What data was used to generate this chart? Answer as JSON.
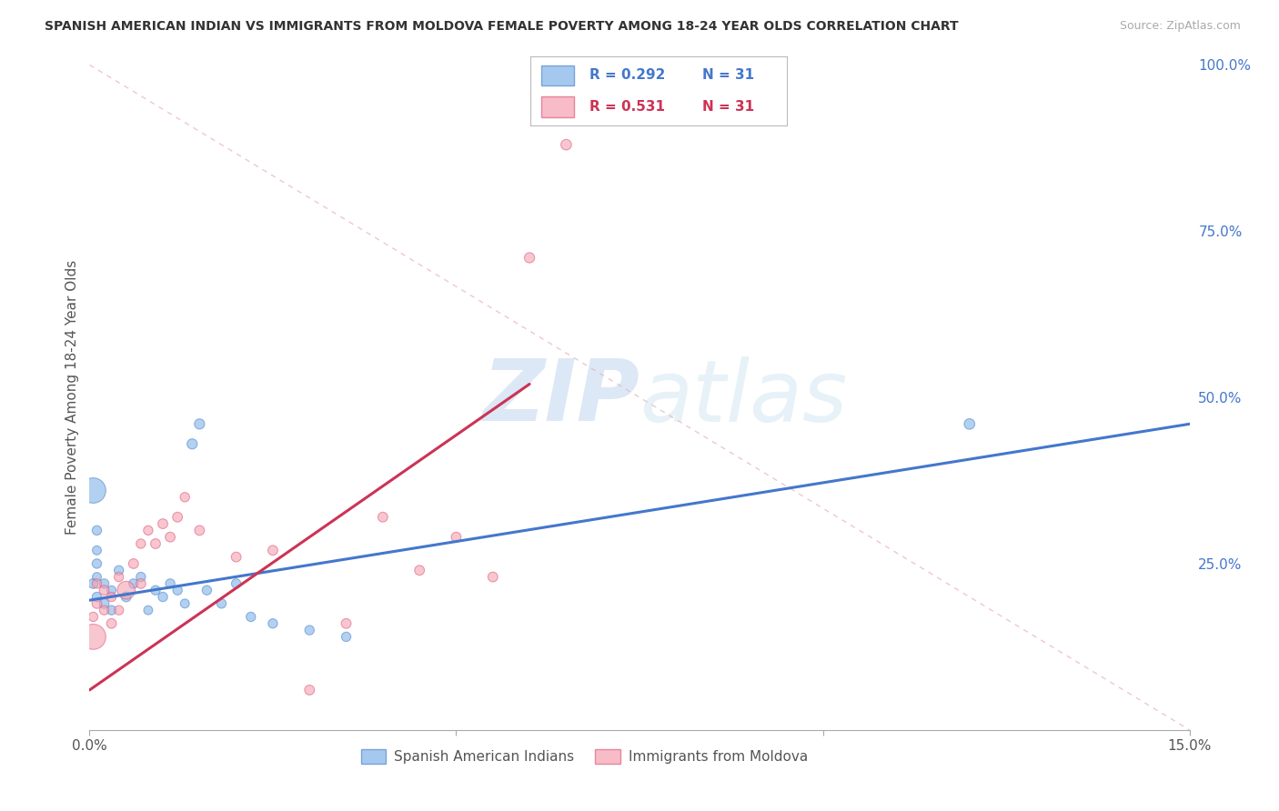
{
  "title": "SPANISH AMERICAN INDIAN VS IMMIGRANTS FROM MOLDOVA FEMALE POVERTY AMONG 18-24 YEAR OLDS CORRELATION CHART",
  "source": "Source: ZipAtlas.com",
  "ylabel": "Female Poverty Among 18-24 Year Olds",
  "xlim": [
    0.0,
    0.15
  ],
  "ylim": [
    0.0,
    1.0
  ],
  "xticks": [
    0.0,
    0.05,
    0.1,
    0.15
  ],
  "xticklabels": [
    "0.0%",
    "",
    "",
    "15.0%"
  ],
  "yticks_right": [
    0.0,
    0.25,
    0.5,
    0.75,
    1.0
  ],
  "ytick_labels_right": [
    "",
    "25.0%",
    "50.0%",
    "75.0%",
    "100.0%"
  ],
  "watermark_zip": "ZIP",
  "watermark_atlas": "atlas",
  "blue_color": "#7fb3e8",
  "blue_edge_color": "#5588cc",
  "pink_color": "#f4a0b0",
  "pink_edge_color": "#e06080",
  "blue_line_color": "#4477cc",
  "pink_line_color": "#cc3355",
  "blue_scatter_x": [
    0.0005,
    0.001,
    0.001,
    0.001,
    0.001,
    0.001,
    0.002,
    0.002,
    0.003,
    0.003,
    0.004,
    0.005,
    0.006,
    0.007,
    0.008,
    0.009,
    0.01,
    0.011,
    0.012,
    0.013,
    0.014,
    0.015,
    0.016,
    0.018,
    0.02,
    0.022,
    0.025,
    0.03,
    0.035,
    0.12,
    0.0005
  ],
  "blue_scatter_y": [
    0.22,
    0.2,
    0.23,
    0.25,
    0.27,
    0.3,
    0.19,
    0.22,
    0.21,
    0.18,
    0.24,
    0.2,
    0.22,
    0.23,
    0.18,
    0.21,
    0.2,
    0.22,
    0.21,
    0.19,
    0.43,
    0.46,
    0.21,
    0.19,
    0.22,
    0.17,
    0.16,
    0.15,
    0.14,
    0.46,
    0.36
  ],
  "blue_scatter_size": [
    60,
    55,
    50,
    55,
    50,
    55,
    60,
    55,
    50,
    55,
    55,
    60,
    55,
    55,
    50,
    55,
    55,
    55,
    55,
    50,
    65,
    65,
    55,
    55,
    55,
    55,
    55,
    55,
    55,
    70,
    400
  ],
  "pink_scatter_x": [
    0.0005,
    0.001,
    0.001,
    0.002,
    0.002,
    0.003,
    0.003,
    0.004,
    0.004,
    0.005,
    0.006,
    0.007,
    0.007,
    0.008,
    0.009,
    0.01,
    0.011,
    0.012,
    0.013,
    0.015,
    0.02,
    0.025,
    0.03,
    0.035,
    0.04,
    0.045,
    0.05,
    0.055,
    0.06,
    0.065,
    0.0005
  ],
  "pink_scatter_y": [
    0.17,
    0.19,
    0.22,
    0.18,
    0.21,
    0.2,
    0.16,
    0.23,
    0.18,
    0.21,
    0.25,
    0.28,
    0.22,
    0.3,
    0.28,
    0.31,
    0.29,
    0.32,
    0.35,
    0.3,
    0.26,
    0.27,
    0.06,
    0.16,
    0.32,
    0.24,
    0.29,
    0.23,
    0.71,
    0.88,
    0.14
  ],
  "pink_scatter_size": [
    55,
    60,
    55,
    55,
    60,
    55,
    60,
    55,
    55,
    200,
    60,
    55,
    60,
    55,
    60,
    60,
    60,
    60,
    55,
    60,
    60,
    60,
    60,
    60,
    60,
    60,
    60,
    60,
    65,
    70,
    400
  ],
  "blue_trend_x": [
    0.0,
    0.15
  ],
  "blue_trend_y": [
    0.195,
    0.46
  ],
  "pink_trend_x": [
    0.0,
    0.06
  ],
  "pink_trend_y": [
    0.06,
    0.52
  ],
  "ref_line_x": [
    0.0,
    0.15
  ],
  "ref_line_y": [
    1.0,
    0.0
  ],
  "background_color": "#ffffff",
  "grid_color": "#cccccc",
  "legend_r1": "R = 0.292",
  "legend_n1": "N = 31",
  "legend_r2": "R = 0.531",
  "legend_n2": "N = 31"
}
